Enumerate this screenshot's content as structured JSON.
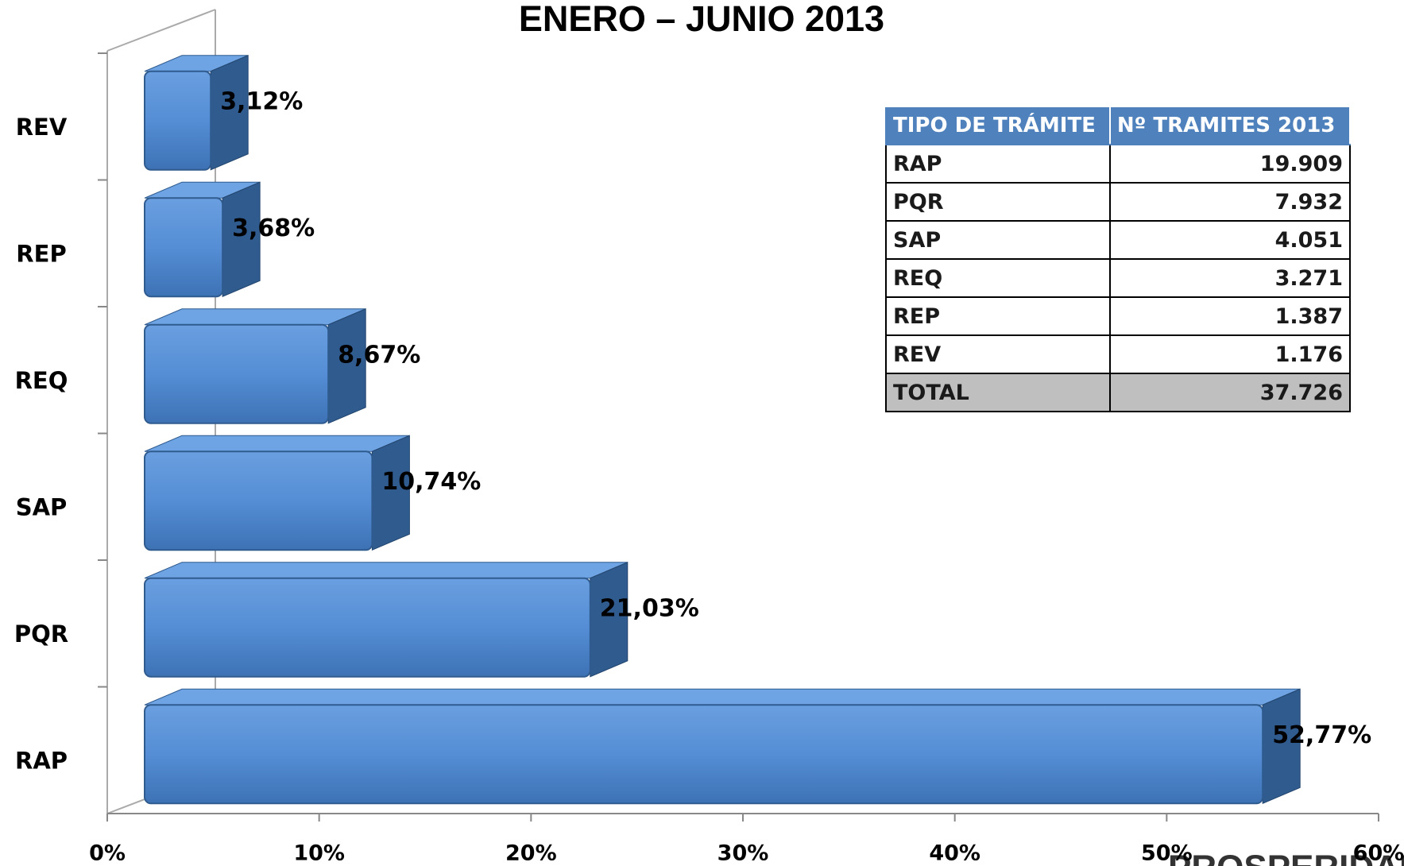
{
  "chart_data": {
    "type": "bar",
    "orientation": "horizontal",
    "title": "ENERO – JUNIO 2013",
    "categories": [
      "REV",
      "REP",
      "REQ",
      "SAP",
      "PQR",
      "RAP"
    ],
    "values": [
      3.12,
      3.68,
      8.67,
      10.74,
      21.03,
      52.77
    ],
    "value_labels": [
      "3,12%",
      "3,68%",
      "8,67%",
      "10,74%",
      "21,03%",
      "52,77%"
    ],
    "color": "#558ed5",
    "xlim": [
      0,
      60
    ],
    "xticks": [
      {
        "value": 0,
        "label": "0%"
      },
      {
        "value": 10,
        "label": "10%"
      },
      {
        "value": 20,
        "label": "20%"
      },
      {
        "value": 30,
        "label": "30%"
      },
      {
        "value": 40,
        "label": "40%"
      },
      {
        "value": 50,
        "label": "50%"
      },
      {
        "value": 60,
        "label": "60%"
      }
    ],
    "grid": false
  },
  "table": {
    "header": [
      "TIPO DE TRÁMITE",
      "Nº TRAMITES 2013"
    ],
    "rows": [
      [
        "RAP",
        "19.909"
      ],
      [
        "PQR",
        "7.932"
      ],
      [
        "SAP",
        "4.051"
      ],
      [
        "REQ",
        "3.271"
      ],
      [
        "REP",
        "1.387"
      ],
      [
        "REV",
        "1.176"
      ]
    ],
    "total": [
      "TOTAL",
      "37.726"
    ]
  },
  "logo": "PROSPERIDAD"
}
